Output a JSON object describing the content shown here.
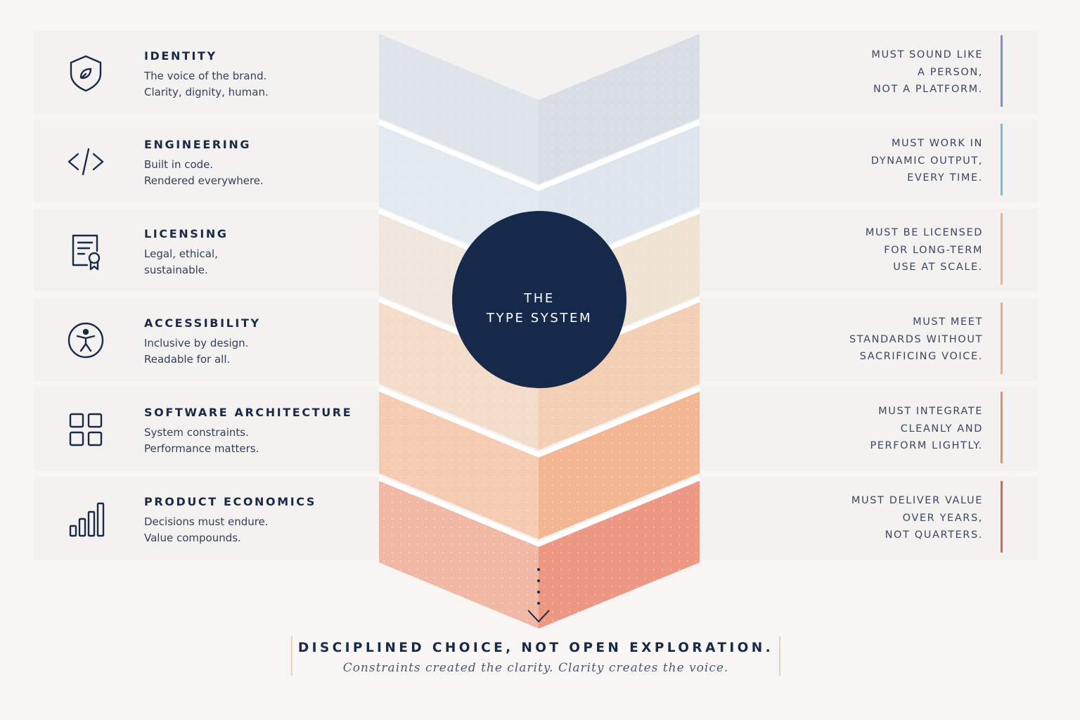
{
  "center": {
    "line1": "THE",
    "line2": "TYPE SYSTEM",
    "color": "#17294a"
  },
  "rows": [
    {
      "title": "IDENTITY",
      "desc": [
        "The voice of the brand.",
        "Clarity, dignity, human."
      ],
      "requirement": [
        "MUST SOUND LIKE",
        "A PERSON,",
        "NOT A PLATFORM."
      ],
      "icon": "shield-icon",
      "accent": "#7d8ed6",
      "band_left": "#dfe3ea",
      "band_right": "#d9dee6"
    },
    {
      "title": "ENGINEERING",
      "desc": [
        "Built in code.",
        "Rendered everywhere."
      ],
      "requirement": [
        "MUST WORK IN",
        "DYNAMIC OUTPUT,",
        "EVERY TIME."
      ],
      "icon": "code-icon",
      "accent": "#6fc0dc",
      "band_left": "#e2e9f0",
      "band_right": "#dde6ee"
    },
    {
      "title": "LICENSING",
      "desc": [
        "Legal, ethical,",
        "sustainable."
      ],
      "requirement": [
        "MUST BE LICENSED",
        "FOR LONG-TERM",
        "USE AT SCALE."
      ],
      "icon": "certificate-icon",
      "accent": "#e0b98a",
      "band_left": "#f1e6dd",
      "band_right": "#efe3d2"
    },
    {
      "title": "ACCESSIBILITY",
      "desc": [
        "Inclusive by design.",
        "Readable for all."
      ],
      "requirement": [
        "MUST MEET",
        "STANDARDS WITHOUT",
        "SACRIFICING VOICE."
      ],
      "icon": "accessibility-icon",
      "accent": "#ecaa85",
      "band_left": "#f4dccb",
      "band_right": "#f3cfb5"
    },
    {
      "title": "SOFTWARE ARCHITECTURE",
      "desc": [
        "System constraints.",
        "Performance matters."
      ],
      "requirement": [
        "MUST INTEGRATE",
        "CLEANLY AND",
        "PERFORM LIGHTLY."
      ],
      "icon": "grid-icon",
      "accent": "#e48f62",
      "band_left": "#f5cbb2",
      "band_right": "#f2b792"
    },
    {
      "title": "PRODUCT ECONOMICS",
      "desc": [
        "Decisions must endure.",
        "Value compounds."
      ],
      "requirement": [
        "MUST DELIVER VALUE",
        "OVER YEARS,",
        "NOT QUARTERS."
      ],
      "icon": "bar-chart-icon",
      "accent": "#d9634f",
      "band_left": "#f2b8a6",
      "band_right": "#ec9884"
    }
  ],
  "footer": {
    "headline": "DISCIPLINED CHOICE, NOT OPEN EXPLORATION.",
    "tagline": "Constraints created the clarity. Clarity creates the voice."
  }
}
